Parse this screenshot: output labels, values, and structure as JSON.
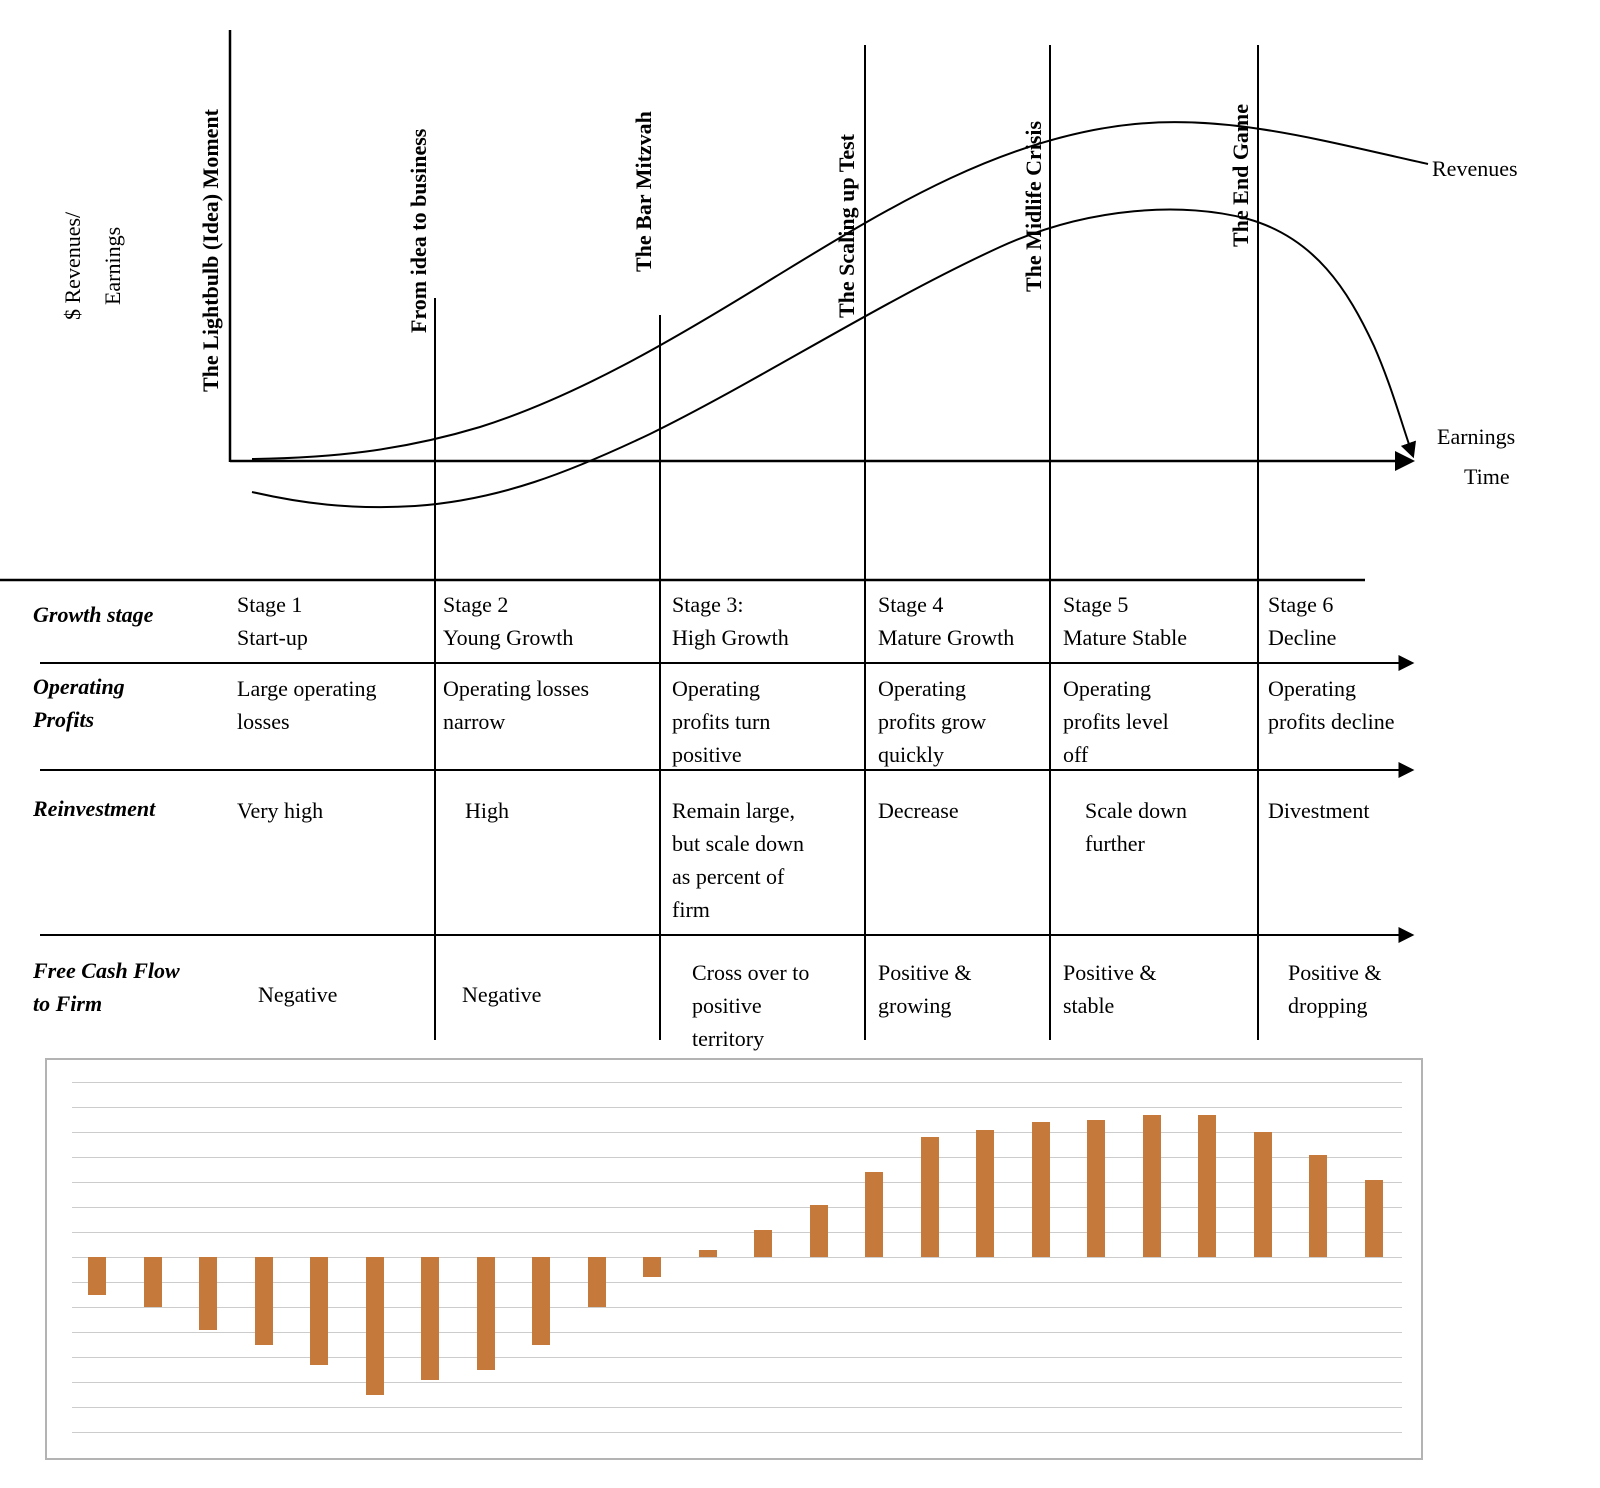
{
  "figure": {
    "y_axis_label": "$ Revenues/\nEarnings",
    "x_axis_label": "Time",
    "revenues_label": "Revenues",
    "earnings_label": "Earnings",
    "stage_markers": [
      "The Lightbulb (Idea) Moment",
      "From idea to business",
      "The Bar Mitzvah",
      "The Scaling up Test",
      "The Midlife Crisis",
      "The End Game"
    ]
  },
  "table": {
    "rows": [
      {
        "label": "Growth stage",
        "cells": [
          "Stage 1\nStart-up",
          "Stage 2\nYoung Growth",
          "Stage 3:\nHigh Growth",
          "Stage 4\nMature Growth",
          "Stage 5\nMature Stable",
          "Stage 6\nDecline"
        ]
      },
      {
        "label": "Operating\nProfits",
        "cells": [
          "Large operating\nlosses",
          "Operating losses\nnarrow",
          "Operating\nprofits turn\npositive",
          "Operating\nprofits grow\nquickly",
          "Operating\nprofits level\noff",
          "Operating\nprofits decline"
        ]
      },
      {
        "label": "Reinvestment",
        "cells": [
          "Very high",
          "High",
          "Remain large,\nbut scale down\nas percent of\nfirm",
          "Decrease",
          "Scale down\nfurther",
          "Divestment"
        ]
      },
      {
        "label": "Free Cash Flow\nto Firm",
        "cells": [
          "Negative",
          "Negative",
          "Cross over to\npositive\nterritory",
          "Positive &\ngrowing",
          "Positive &\nstable",
          "Positive &\ndropping"
        ]
      }
    ]
  },
  "chart_data": {
    "type": "bar",
    "series": [
      {
        "name": "Free Cash Flow to Firm",
        "values": [
          -1.5,
          -2.0,
          -2.9,
          -3.5,
          -4.3,
          -5.5,
          -4.9,
          -4.5,
          -3.5,
          -2.0,
          -0.8,
          0.3,
          1.1,
          2.1,
          3.4,
          4.8,
          5.1,
          5.4,
          5.5,
          5.7,
          5.7,
          5.0,
          4.1,
          3.1
        ]
      }
    ],
    "x": [
      1,
      2,
      3,
      4,
      5,
      6,
      7,
      8,
      9,
      10,
      11,
      12,
      13,
      14,
      15,
      16,
      17,
      18,
      19,
      20,
      21,
      22,
      23,
      24
    ],
    "ylim": [
      -8,
      8
    ],
    "grid": true,
    "tick_labels_visible": false,
    "legend": "none",
    "bar_color": "#c57a3b",
    "gridline_color": "#cccccc"
  }
}
